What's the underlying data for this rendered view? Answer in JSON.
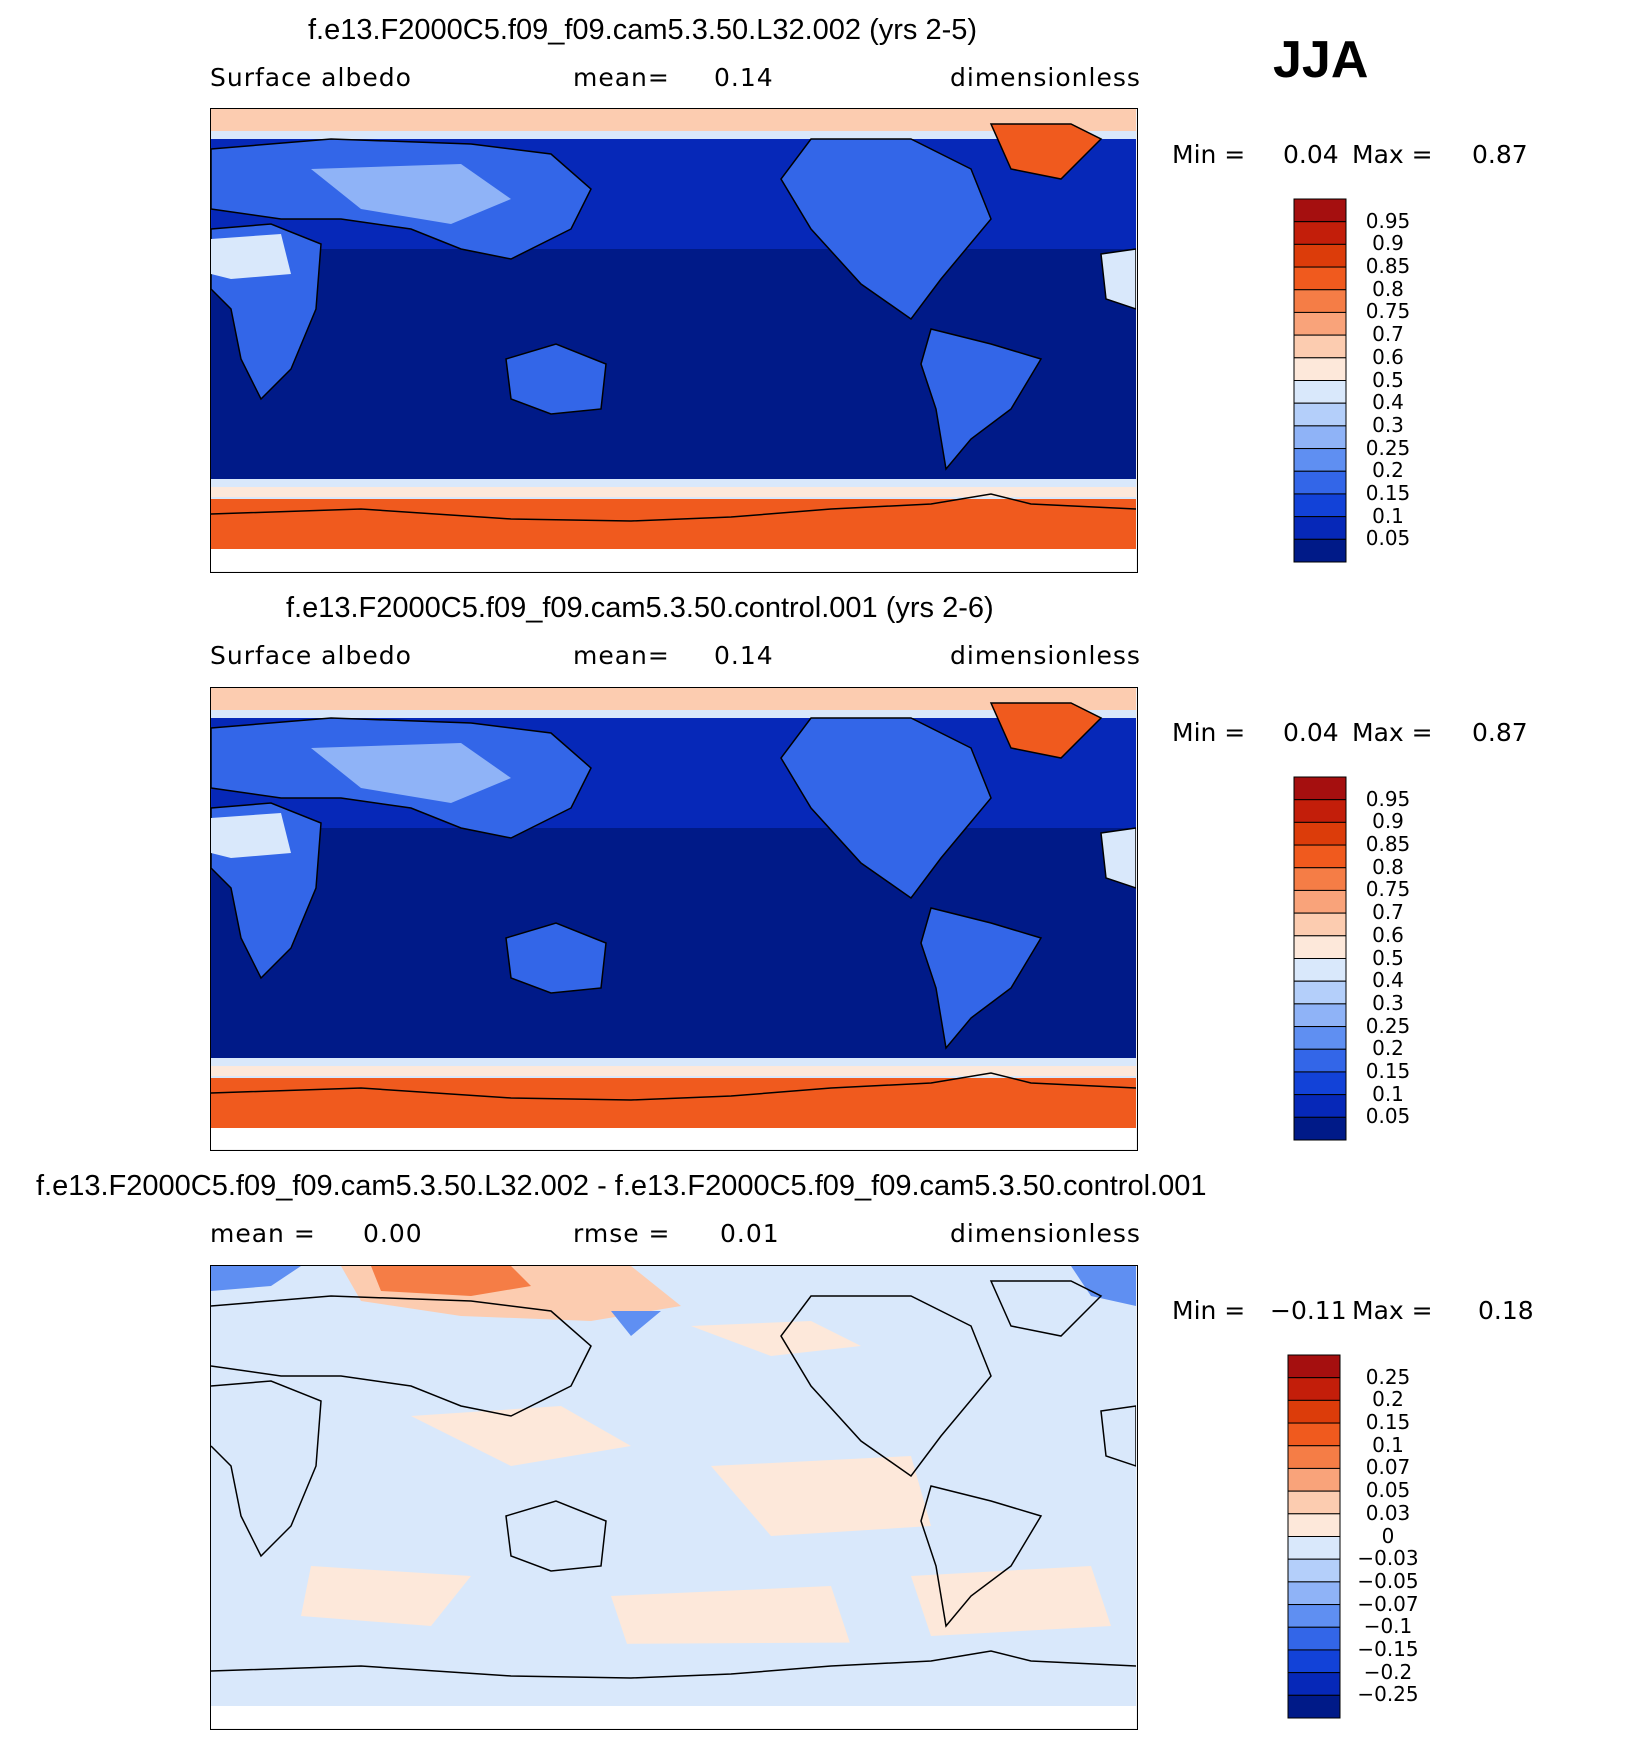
{
  "season_label": "JJA",
  "chart_data": [
    {
      "type": "heatmap",
      "title": "f.e13.F2000C5.f09_f09.cam5.3.50.L32.002 (yrs 2-5)",
      "field": "Surface albedo",
      "mean_label": "mean=",
      "mean_value": "0.14",
      "units": "dimensionless",
      "min_label": "Min =",
      "min_value": "0.04",
      "max_label": "Max =",
      "max_value": "0.87",
      "levels": [
        "0.95",
        "0.9",
        "0.85",
        "0.8",
        "0.75",
        "0.7",
        "0.6",
        "0.5",
        "0.4",
        "0.3",
        "0.25",
        "0.2",
        "0.15",
        "0.1",
        "0.05"
      ],
      "colors": [
        "#a50f0f",
        "#c31e0a",
        "#dc3c0a",
        "#f05a1e",
        "#f57d46",
        "#f9a37a",
        "#fcccb0",
        "#fde8da",
        "#d9e8fb",
        "#b4cffa",
        "#8fb3f7",
        "#5f8ff2",
        "#3366e8",
        "#1242d8",
        "#0628b8",
        "#001a88"
      ],
      "series": []
    },
    {
      "type": "heatmap",
      "title": "f.e13.F2000C5.f09_f09.cam5.3.50.control.001 (yrs 2-6)",
      "field": "Surface albedo",
      "mean_label": "mean=",
      "mean_value": "0.14",
      "units": "dimensionless",
      "min_label": "Min =",
      "min_value": "0.04",
      "max_label": "Max =",
      "max_value": "0.87",
      "levels": [
        "0.95",
        "0.9",
        "0.85",
        "0.8",
        "0.75",
        "0.7",
        "0.6",
        "0.5",
        "0.4",
        "0.3",
        "0.25",
        "0.2",
        "0.15",
        "0.1",
        "0.05"
      ],
      "colors": [
        "#a50f0f",
        "#c31e0a",
        "#dc3c0a",
        "#f05a1e",
        "#f57d46",
        "#f9a37a",
        "#fcccb0",
        "#fde8da",
        "#d9e8fb",
        "#b4cffa",
        "#8fb3f7",
        "#5f8ff2",
        "#3366e8",
        "#1242d8",
        "#0628b8",
        "#001a88"
      ],
      "series": []
    },
    {
      "type": "heatmap",
      "title": "f.e13.F2000C5.f09_f09.cam5.3.50.L32.002 - f.e13.F2000C5.f09_f09.cam5.3.50.control.001",
      "field": "mean =",
      "mean_value": "0.00",
      "rmse_label": "rmse =",
      "rmse_value": "0.01",
      "units": "dimensionless",
      "min_label": "Min =",
      "min_value": "−0.11",
      "max_label": "Max =",
      "max_value": "0.18",
      "levels": [
        "0.25",
        "0.2",
        "0.15",
        "0.1",
        "0.07",
        "0.05",
        "0.03",
        "0",
        "−0.03",
        "−0.05",
        "−0.07",
        "−0.1",
        "−0.15",
        "−0.2",
        "−0.25"
      ],
      "colors": [
        "#a50f0f",
        "#c31e0a",
        "#dc3c0a",
        "#f05a1e",
        "#f57d46",
        "#f9a37a",
        "#fcccb0",
        "#fde8da",
        "#d9e8fb",
        "#b4cffa",
        "#8fb3f7",
        "#5f8ff2",
        "#3366e8",
        "#1242d8",
        "#0628b8",
        "#001a88"
      ],
      "series": []
    }
  ]
}
